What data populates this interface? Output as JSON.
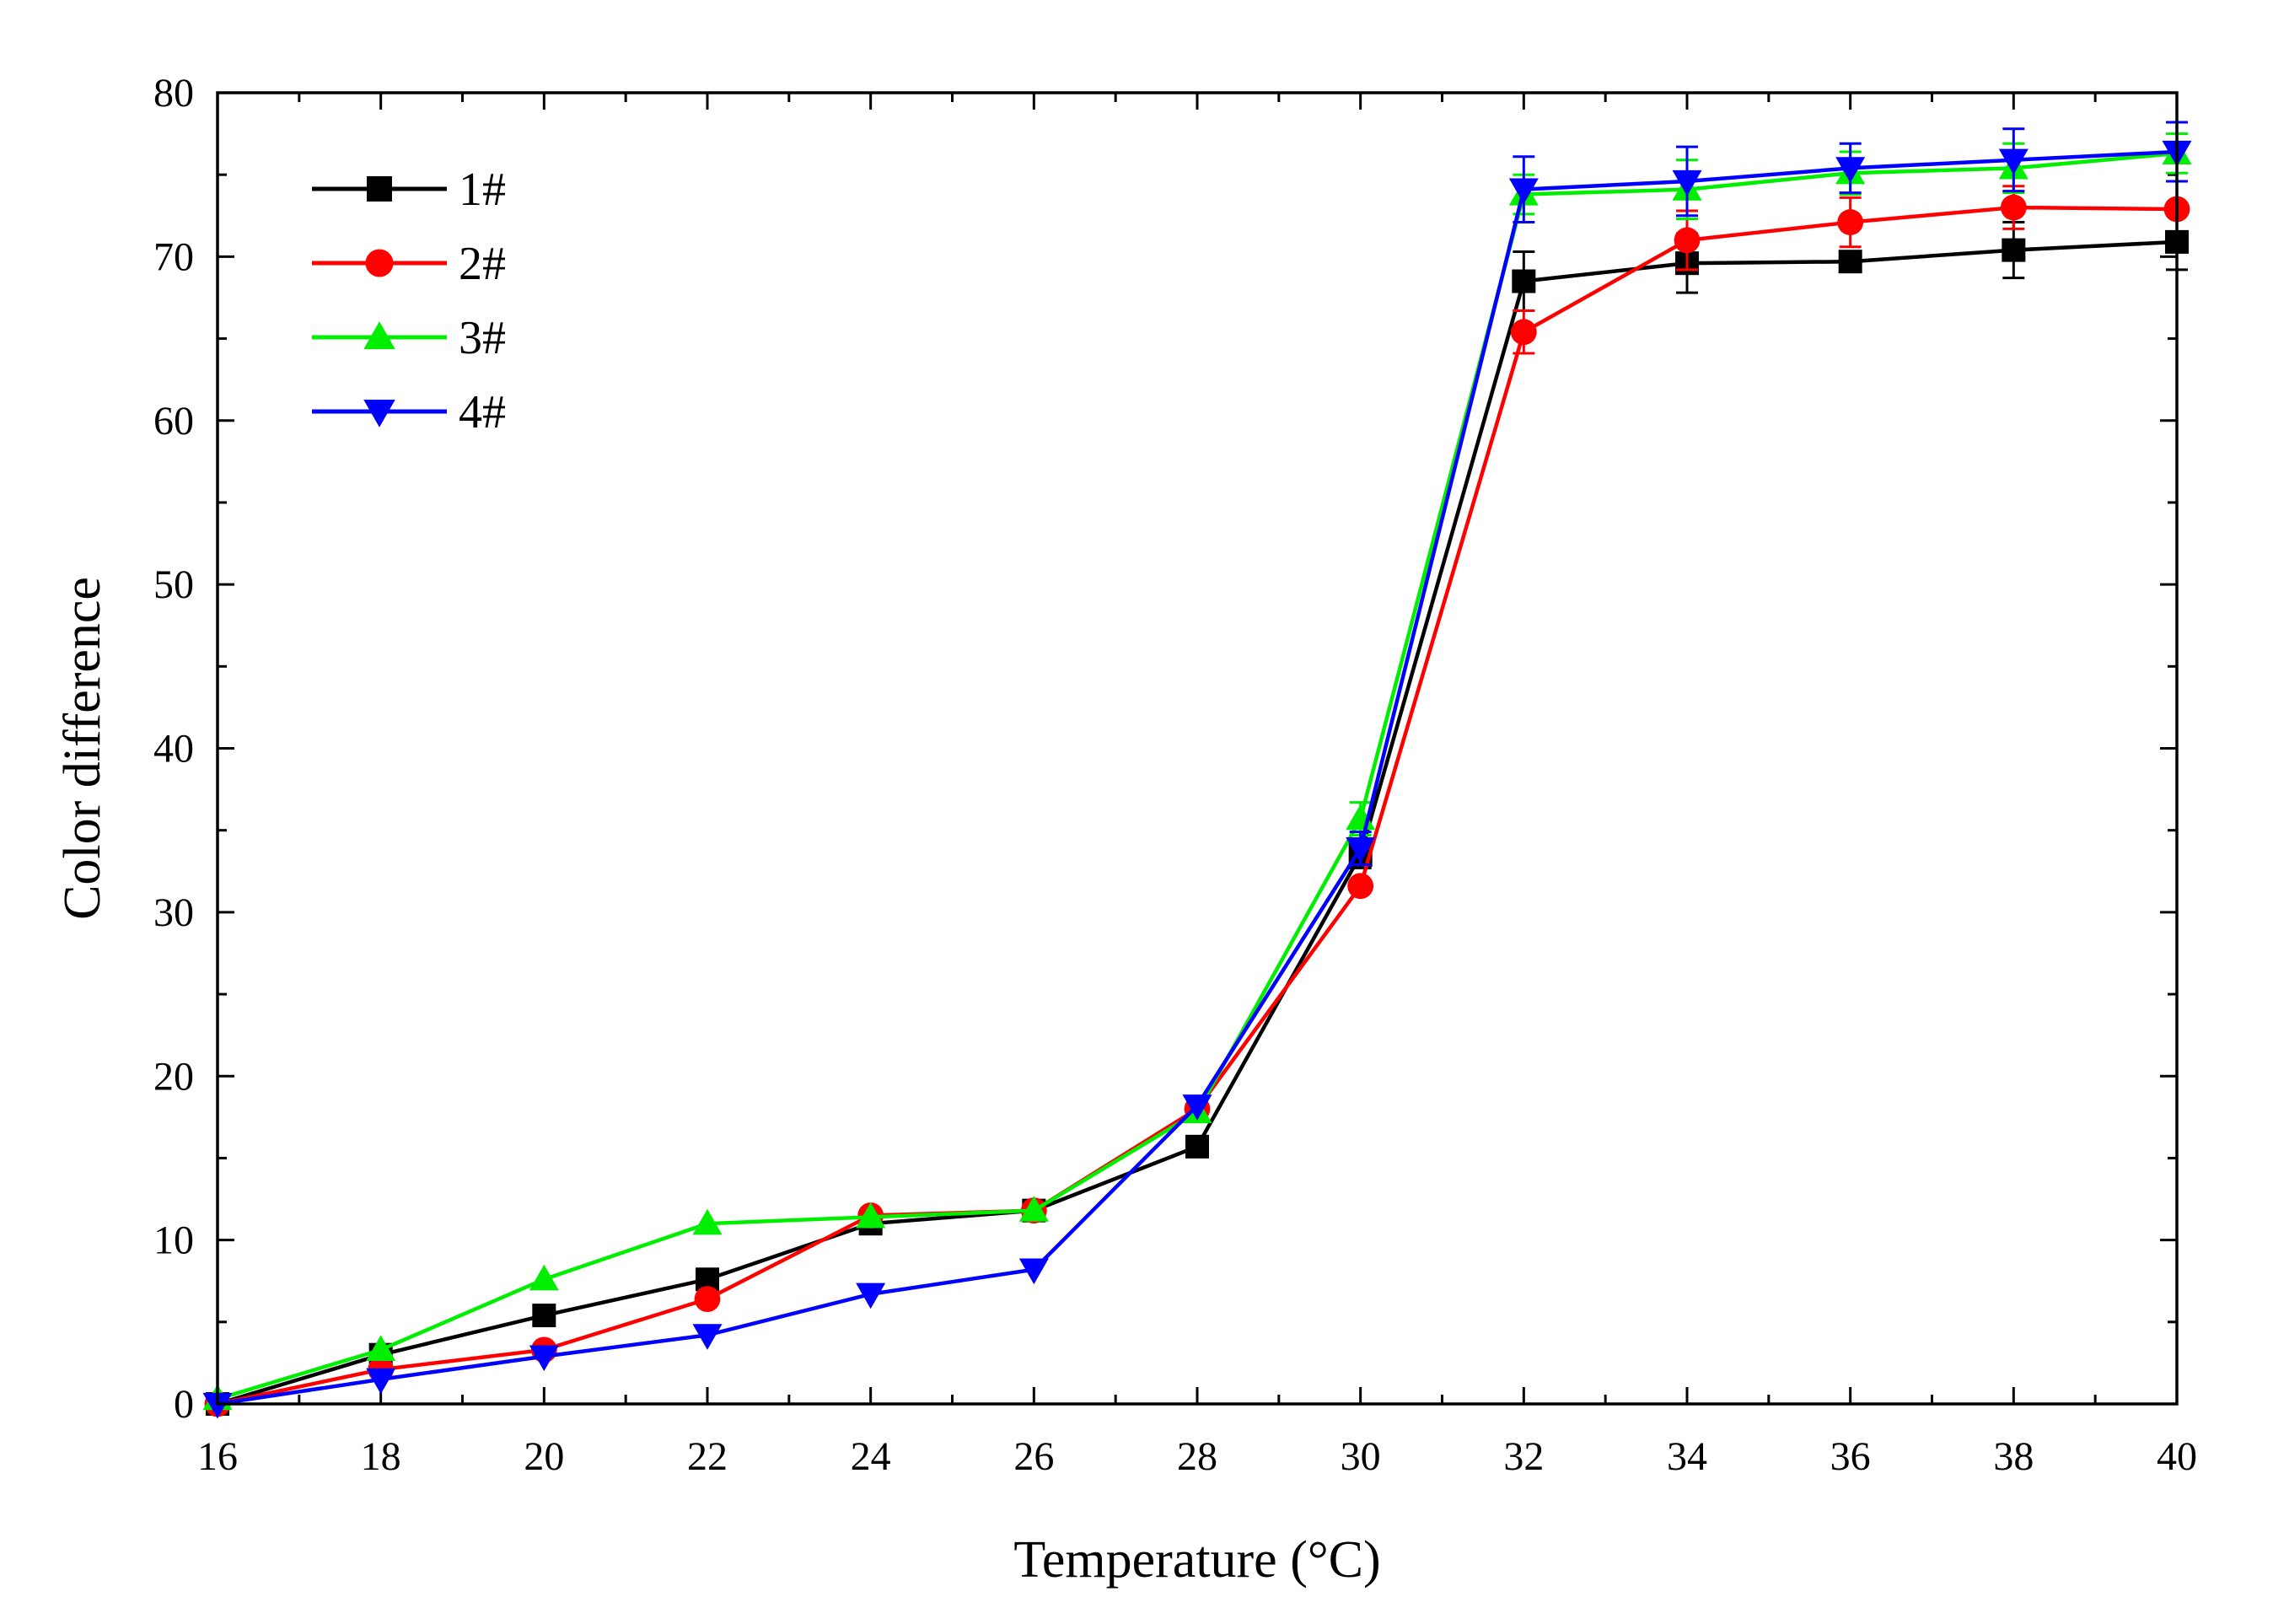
{
  "chart_data": {
    "type": "line",
    "xlabel": "Temperature (°C)",
    "ylabel": "Color difference",
    "xlim": [
      16,
      40
    ],
    "ylim": [
      0,
      80
    ],
    "x_ticks": [
      16,
      18,
      20,
      22,
      24,
      26,
      28,
      30,
      32,
      34,
      36,
      38,
      40
    ],
    "y_ticks": [
      0,
      10,
      20,
      30,
      40,
      50,
      60,
      70,
      80
    ],
    "x_tick_labels": [
      "16",
      "18",
      "20",
      "22",
      "24",
      "26",
      "28",
      "30",
      "32",
      "34",
      "36",
      "38",
      "40"
    ],
    "y_tick_labels": [
      "0",
      "10",
      "20",
      "30",
      "40",
      "50",
      "60",
      "70",
      "80"
    ],
    "legend_position": "top-left",
    "x": [
      16,
      18,
      20,
      22,
      24,
      26,
      28,
      30,
      32,
      34,
      36,
      38,
      40
    ],
    "series": [
      {
        "name": "1#",
        "color": "#000000",
        "marker": "square",
        "values": [
          0,
          3.0,
          5.4,
          7.6,
          11.0,
          11.8,
          15.7,
          33.5,
          68.5,
          69.6,
          69.7,
          70.4,
          70.9
        ],
        "errors": [
          0,
          0,
          0,
          0,
          0,
          0,
          0,
          0.8,
          1.8,
          1.8,
          0,
          1.7,
          1.7
        ]
      },
      {
        "name": "2#",
        "color": "#ff0000",
        "marker": "circle",
        "values": [
          0,
          2.1,
          3.3,
          6.4,
          11.5,
          11.8,
          18.0,
          31.6,
          65.4,
          71.0,
          72.1,
          73.0,
          72.9
        ],
        "errors": [
          0,
          0,
          0,
          0,
          0,
          0,
          0,
          0,
          1.3,
          1.8,
          1.5,
          1.3,
          0
        ]
      },
      {
        "name": "3#",
        "color": "#00ee00",
        "marker": "triangle-up",
        "values": [
          0.3,
          3.3,
          7.6,
          11.0,
          11.4,
          11.8,
          17.8,
          35.7,
          73.8,
          74.1,
          75.1,
          75.4,
          76.3
        ],
        "errors": [
          0,
          0,
          0,
          0,
          0,
          0,
          0,
          1.0,
          1.2,
          1.8,
          1.3,
          1.5,
          1.2
        ]
      },
      {
        "name": "4#",
        "color": "#0000ff",
        "marker": "triangle-down",
        "values": [
          0,
          1.5,
          2.9,
          4.2,
          6.7,
          8.2,
          18.2,
          33.9,
          74.1,
          74.6,
          75.4,
          75.9,
          76.4
        ],
        "errors": [
          0,
          0,
          0,
          0,
          0,
          0,
          0,
          1.0,
          2.0,
          2.1,
          1.5,
          1.9,
          1.8
        ]
      }
    ]
  }
}
